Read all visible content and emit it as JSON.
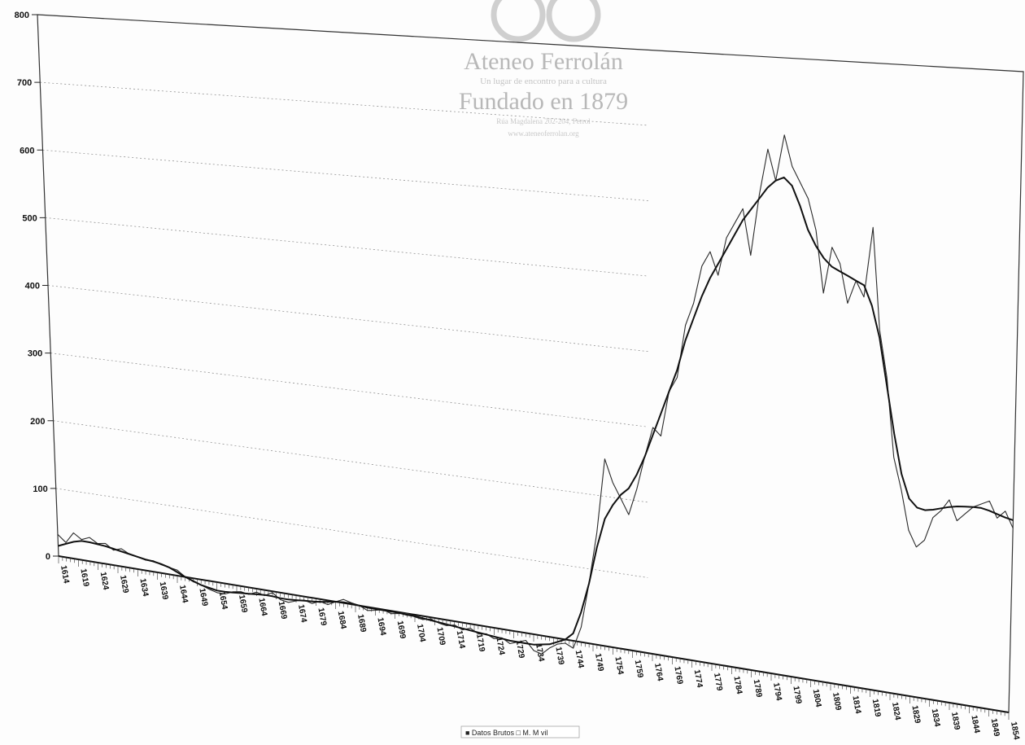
{
  "watermark": {
    "line1": "Ateneo Ferrolán",
    "line2": "Un lugar de encontro para a cultura",
    "line3": "Fundado en 1879",
    "line4": "Rúa Magdalena 202-204, Ferrol",
    "line5": "www.ateneoferrolan.org"
  },
  "legend": {
    "text": "■ Datos Brutos □ M. M  vil"
  },
  "chart_data": {
    "type": "line",
    "title": "",
    "xlabel": "",
    "ylabel": "",
    "ylim": [
      0,
      800
    ],
    "yticks": [
      0,
      100,
      200,
      300,
      400,
      500,
      600,
      700,
      800
    ],
    "xticks": [
      1614,
      1619,
      1624,
      1629,
      1634,
      1639,
      1644,
      1649,
      1654,
      1659,
      1664,
      1669,
      1674,
      1679,
      1684,
      1689,
      1694,
      1699,
      1704,
      1709,
      1714,
      1719,
      1724,
      1729,
      1734,
      1739,
      1744,
      1749,
      1754,
      1759,
      1764,
      1769,
      1774,
      1779,
      1784,
      1789,
      1794,
      1799,
      1804,
      1809,
      1814,
      1819,
      1824,
      1829,
      1834,
      1839,
      1844,
      1849,
      1854
    ],
    "grid": true,
    "legend_position": "bottom",
    "series": [
      {
        "name": "Datos Brutos",
        "points": [
          [
            1614,
            32
          ],
          [
            1616,
            22
          ],
          [
            1618,
            38
          ],
          [
            1620,
            30
          ],
          [
            1622,
            35
          ],
          [
            1624,
            28
          ],
          [
            1626,
            30
          ],
          [
            1628,
            22
          ],
          [
            1630,
            26
          ],
          [
            1632,
            20
          ],
          [
            1634,
            18
          ],
          [
            1636,
            15
          ],
          [
            1638,
            16
          ],
          [
            1640,
            12
          ],
          [
            1642,
            10
          ],
          [
            1644,
            8
          ],
          [
            1646,
            0
          ],
          [
            1648,
            -5
          ],
          [
            1650,
            -8
          ],
          [
            1652,
            -12
          ],
          [
            1654,
            -15
          ],
          [
            1656,
            -15
          ],
          [
            1658,
            -10
          ],
          [
            1660,
            -8
          ],
          [
            1662,
            -10
          ],
          [
            1664,
            -5
          ],
          [
            1666,
            -8
          ],
          [
            1668,
            -2
          ],
          [
            1670,
            -10
          ],
          [
            1672,
            -12
          ],
          [
            1674,
            -8
          ],
          [
            1676,
            -5
          ],
          [
            1678,
            -8
          ],
          [
            1680,
            -3
          ],
          [
            1682,
            -6
          ],
          [
            1684,
            0
          ],
          [
            1686,
            5
          ],
          [
            1688,
            2
          ],
          [
            1690,
            0
          ],
          [
            1692,
            -5
          ],
          [
            1694,
            -3
          ],
          [
            1696,
            0
          ],
          [
            1698,
            -4
          ],
          [
            1700,
            -2
          ],
          [
            1702,
            0
          ],
          [
            1704,
            -3
          ],
          [
            1706,
            -5
          ],
          [
            1708,
            -2
          ],
          [
            1710,
            -6
          ],
          [
            1712,
            -8
          ],
          [
            1714,
            -5
          ],
          [
            1716,
            -10
          ],
          [
            1718,
            -6
          ],
          [
            1720,
            -12
          ],
          [
            1722,
            -10
          ],
          [
            1724,
            -15
          ],
          [
            1726,
            -12
          ],
          [
            1728,
            -18
          ],
          [
            1730,
            -14
          ],
          [
            1732,
            -10
          ],
          [
            1734,
            -22
          ],
          [
            1736,
            -25
          ],
          [
            1738,
            -15
          ],
          [
            1740,
            -8
          ],
          [
            1742,
            -5
          ],
          [
            1744,
            -10
          ],
          [
            1746,
            20
          ],
          [
            1748,
            80
          ],
          [
            1750,
            150
          ],
          [
            1752,
            250
          ],
          [
            1754,
            220
          ],
          [
            1756,
            200
          ],
          [
            1758,
            180
          ],
          [
            1760,
            215
          ],
          [
            1762,
            260
          ],
          [
            1764,
            300
          ],
          [
            1766,
            290
          ],
          [
            1768,
            350
          ],
          [
            1770,
            370
          ],
          [
            1772,
            440
          ],
          [
            1774,
            470
          ],
          [
            1776,
            520
          ],
          [
            1778,
            540
          ],
          [
            1780,
            510
          ],
          [
            1782,
            560
          ],
          [
            1784,
            580
          ],
          [
            1786,
            600
          ],
          [
            1788,
            540
          ],
          [
            1790,
            620
          ],
          [
            1792,
            680
          ],
          [
            1794,
            640
          ],
          [
            1796,
            700
          ],
          [
            1798,
            660
          ],
          [
            1800,
            640
          ],
          [
            1802,
            620
          ],
          [
            1804,
            580
          ],
          [
            1806,
            500
          ],
          [
            1808,
            560
          ],
          [
            1810,
            540
          ],
          [
            1812,
            490
          ],
          [
            1814,
            520
          ],
          [
            1816,
            500
          ],
          [
            1818,
            590
          ],
          [
            1820,
            460
          ],
          [
            1822,
            400
          ],
          [
            1824,
            300
          ],
          [
            1826,
            260
          ],
          [
            1828,
            210
          ],
          [
            1830,
            190
          ],
          [
            1832,
            200
          ],
          [
            1834,
            230
          ],
          [
            1836,
            240
          ],
          [
            1838,
            255
          ],
          [
            1840,
            230
          ],
          [
            1842,
            240
          ],
          [
            1844,
            250
          ],
          [
            1846,
            255
          ],
          [
            1848,
            260
          ],
          [
            1850,
            240
          ],
          [
            1852,
            250
          ],
          [
            1854,
            230
          ]
        ]
      },
      {
        "name": "M. M  vil",
        "points": [
          [
            1614,
            15
          ],
          [
            1616,
            20
          ],
          [
            1618,
            25
          ],
          [
            1620,
            28
          ],
          [
            1622,
            28
          ],
          [
            1624,
            27
          ],
          [
            1626,
            26
          ],
          [
            1628,
            24
          ],
          [
            1630,
            22
          ],
          [
            1632,
            20
          ],
          [
            1634,
            18
          ],
          [
            1636,
            16
          ],
          [
            1638,
            15
          ],
          [
            1640,
            13
          ],
          [
            1642,
            10
          ],
          [
            1644,
            5
          ],
          [
            1646,
            0
          ],
          [
            1648,
            -4
          ],
          [
            1650,
            -8
          ],
          [
            1652,
            -10
          ],
          [
            1654,
            -12
          ],
          [
            1656,
            -12
          ],
          [
            1658,
            -11
          ],
          [
            1660,
            -10
          ],
          [
            1662,
            -9
          ],
          [
            1664,
            -8
          ],
          [
            1666,
            -7
          ],
          [
            1668,
            -7
          ],
          [
            1670,
            -8
          ],
          [
            1672,
            -8
          ],
          [
            1674,
            -7
          ],
          [
            1676,
            -6
          ],
          [
            1678,
            -5
          ],
          [
            1680,
            -4
          ],
          [
            1682,
            -2
          ],
          [
            1684,
            0
          ],
          [
            1686,
            1
          ],
          [
            1688,
            1
          ],
          [
            1690,
            0
          ],
          [
            1692,
            -1
          ],
          [
            1694,
            -1
          ],
          [
            1696,
            -1
          ],
          [
            1698,
            -1
          ],
          [
            1700,
            -1
          ],
          [
            1702,
            -2
          ],
          [
            1704,
            -2
          ],
          [
            1706,
            -3
          ],
          [
            1708,
            -4
          ],
          [
            1710,
            -5
          ],
          [
            1712,
            -6
          ],
          [
            1714,
            -7
          ],
          [
            1716,
            -8
          ],
          [
            1718,
            -9
          ],
          [
            1720,
            -10
          ],
          [
            1722,
            -11
          ],
          [
            1724,
            -12
          ],
          [
            1726,
            -13
          ],
          [
            1728,
            -14
          ],
          [
            1730,
            -14
          ],
          [
            1732,
            -14
          ],
          [
            1734,
            -14
          ],
          [
            1736,
            -12
          ],
          [
            1738,
            -10
          ],
          [
            1740,
            -5
          ],
          [
            1742,
            0
          ],
          [
            1744,
            10
          ],
          [
            1746,
            40
          ],
          [
            1748,
            80
          ],
          [
            1750,
            130
          ],
          [
            1752,
            170
          ],
          [
            1754,
            190
          ],
          [
            1756,
            205
          ],
          [
            1758,
            215
          ],
          [
            1760,
            235
          ],
          [
            1762,
            260
          ],
          [
            1764,
            290
          ],
          [
            1766,
            320
          ],
          [
            1768,
            350
          ],
          [
            1770,
            380
          ],
          [
            1772,
            420
          ],
          [
            1774,
            450
          ],
          [
            1776,
            480
          ],
          [
            1778,
            505
          ],
          [
            1780,
            525
          ],
          [
            1782,
            545
          ],
          [
            1784,
            565
          ],
          [
            1786,
            585
          ],
          [
            1788,
            600
          ],
          [
            1790,
            615
          ],
          [
            1792,
            630
          ],
          [
            1794,
            640
          ],
          [
            1796,
            645
          ],
          [
            1798,
            635
          ],
          [
            1800,
            610
          ],
          [
            1802,
            580
          ],
          [
            1804,
            560
          ],
          [
            1806,
            545
          ],
          [
            1808,
            535
          ],
          [
            1810,
            530
          ],
          [
            1812,
            525
          ],
          [
            1814,
            520
          ],
          [
            1816,
            515
          ],
          [
            1818,
            490
          ],
          [
            1820,
            450
          ],
          [
            1822,
            390
          ],
          [
            1824,
            330
          ],
          [
            1826,
            280
          ],
          [
            1828,
            250
          ],
          [
            1830,
            240
          ],
          [
            1832,
            238
          ],
          [
            1834,
            240
          ],
          [
            1836,
            243
          ],
          [
            1838,
            246
          ],
          [
            1840,
            248
          ],
          [
            1842,
            249
          ],
          [
            1844,
            250
          ],
          [
            1846,
            250
          ],
          [
            1848,
            248
          ],
          [
            1850,
            245
          ],
          [
            1852,
            242
          ],
          [
            1854,
            240
          ]
        ]
      }
    ]
  }
}
